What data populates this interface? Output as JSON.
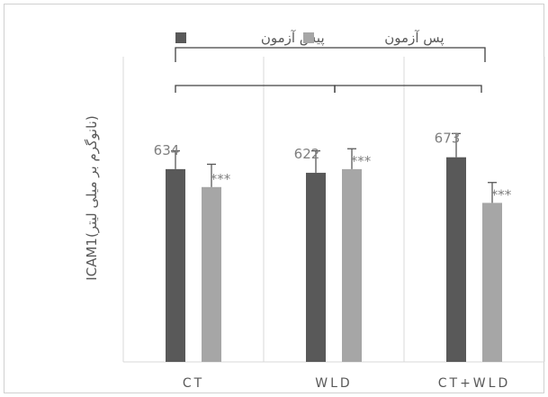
{
  "chart_data": {
    "type": "bar",
    "ylabel": "ICAM1(نانوگرم بر میلی لیتر)",
    "categories": [
      "CT",
      "WLD",
      "CT+WLD"
    ],
    "series": [
      {
        "name": "پیش آزمون",
        "color": "#595959",
        "values": [
          634,
          622,
          673
        ],
        "errors": [
          60,
          72,
          78
        ]
      },
      {
        "name": "پس آزمون",
        "color": "#a6a6a6",
        "values": [
          575,
          634,
          523
        ],
        "errors": [
          75,
          67,
          67
        ]
      }
    ],
    "value_labels": [
      "634",
      "622",
      "673"
    ],
    "significance_labels": [
      "***",
      "***",
      "***"
    ],
    "legend_position": "top",
    "ylim": [
      0,
      980
    ],
    "grid": false
  }
}
